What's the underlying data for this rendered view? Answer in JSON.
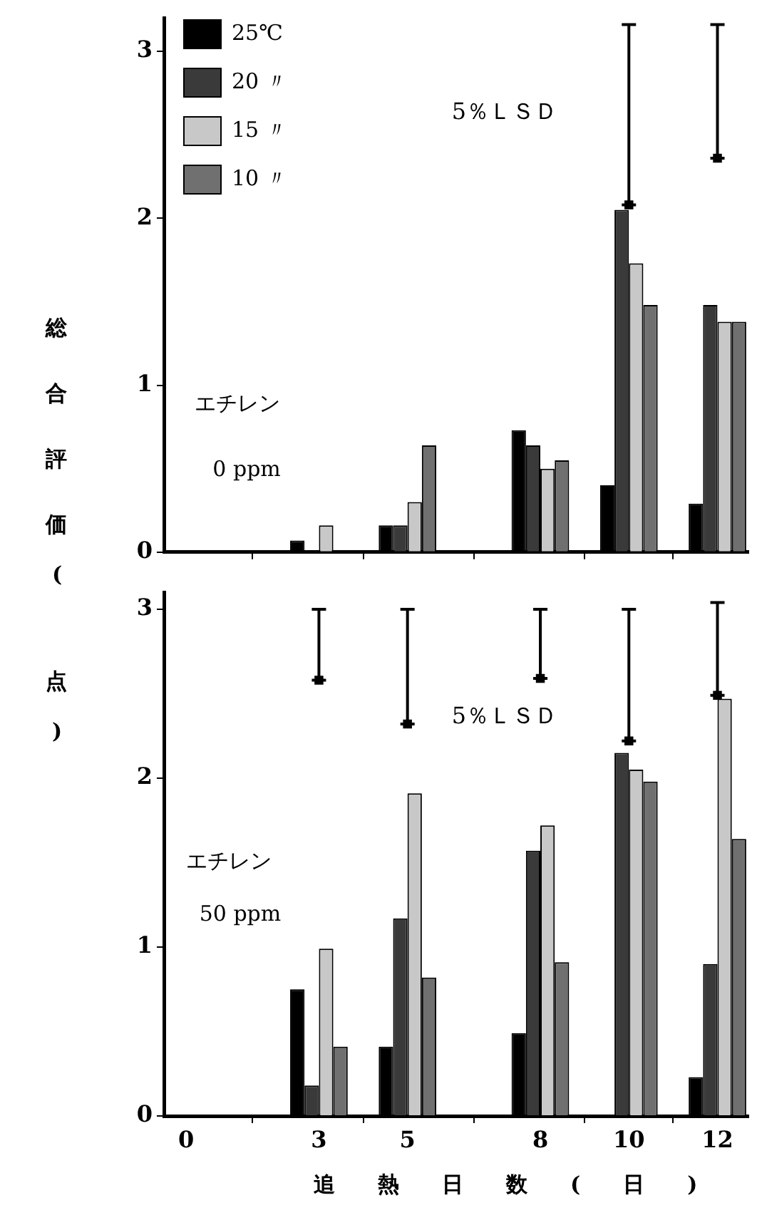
{
  "chart_data": [
    {
      "type": "bar",
      "ylabel": "総合評価(点)",
      "x": [
        3,
        5,
        8,
        10,
        12
      ],
      "xlim": [
        -0.5,
        12.7
      ],
      "xticks": [
        0,
        3,
        5,
        8,
        10,
        12
      ],
      "ylim": [
        0,
        3.2
      ],
      "yticks": [
        0,
        1,
        2,
        3
      ],
      "tick_labels": "y",
      "grid": false,
      "legend": "top left",
      "annotations": [
        "エチレン",
        "0 ppm",
        "5％ＬＳＤ"
      ],
      "series": [
        {
          "name": "25℃",
          "color": "#000000",
          "values": [
            0.07,
            0.16,
            0.73,
            0.4,
            0.29
          ]
        },
        {
          "name": "20 〃",
          "color": "#3a3a3a",
          "values": [
            null,
            0.16,
            0.64,
            2.05,
            1.48
          ]
        },
        {
          "name": "15 〃",
          "color": "#c8c8c8",
          "values": [
            0.16,
            0.3,
            0.5,
            1.73,
            1.38
          ]
        },
        {
          "name": "10 〃",
          "color": "#707070",
          "values": [
            null,
            0.64,
            0.55,
            1.48,
            1.38
          ]
        },
        {
          "type": "scatter",
          "marker": "square",
          "color": "#000000",
          "x": [
            10,
            12
          ],
          "values": [
            2.08,
            2.36
          ],
          "errors": [
            [
              2.08,
              3.16
            ],
            [
              2.36,
              3.16
            ]
          ]
        }
      ]
    },
    {
      "type": "bar",
      "xlabel": "追熱日数(日)",
      "x": [
        3,
        5,
        8,
        10,
        12
      ],
      "xlim": [
        -0.5,
        12.7
      ],
      "xticks": [
        0,
        3,
        5,
        8,
        10,
        12
      ],
      "ylim": [
        0,
        3.1
      ],
      "yticks": [
        0,
        1,
        2,
        3
      ],
      "grid": false,
      "annotations": [
        "エチレン",
        "50 ppm",
        "5％ＬＳＤ"
      ],
      "series": [
        {
          "color": "#000000",
          "values": [
            0.75,
            0.41,
            0.49,
            null,
            0.23
          ]
        },
        {
          "color": "#3a3a3a",
          "values": [
            0.18,
            1.17,
            1.57,
            2.15,
            0.9
          ]
        },
        {
          "color": "#c8c8c8",
          "values": [
            0.99,
            1.91,
            1.72,
            2.05,
            2.47
          ]
        },
        {
          "color": "#707070",
          "values": [
            0.41,
            0.82,
            0.91,
            1.98,
            1.64
          ]
        },
        {
          "type": "scatter",
          "marker": "square",
          "color": "#000000",
          "x": [
            3,
            5,
            8,
            10,
            12
          ],
          "values": [
            2.58,
            2.32,
            2.59,
            2.22,
            2.49
          ],
          "errors": [
            [
              2.58,
              3.0
            ],
            [
              2.32,
              3.0
            ],
            [
              2.59,
              3.0
            ],
            [
              2.22,
              3.0
            ],
            [
              2.49,
              3.04
            ]
          ]
        }
      ]
    }
  ]
}
